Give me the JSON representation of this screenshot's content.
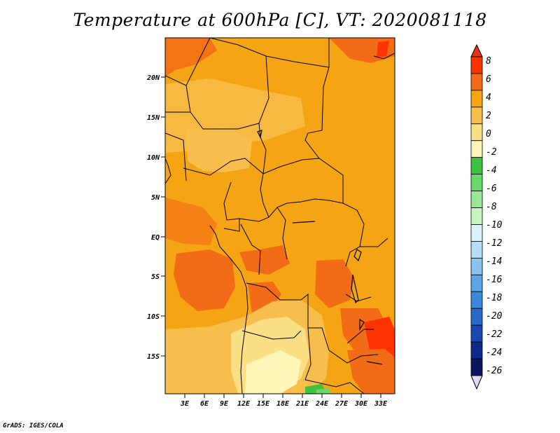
{
  "title": "Temperature at 600hPa [C], VT: 2020081118",
  "credit": "GrADS: IGES/COLA",
  "map": {
    "lat_ticks": [
      "20N",
      "15N",
      "10N",
      "5N",
      "EQ",
      "5S",
      "10S",
      "15S"
    ],
    "lon_ticks": [
      "3E",
      "6E",
      "9E",
      "12E",
      "15E",
      "18E",
      "21E",
      "24E",
      "27E",
      "30E",
      "33E"
    ],
    "background_color": "#f5a414"
  },
  "colorbar": {
    "labels": [
      "8",
      "6",
      "4",
      "2",
      "0",
      "-2",
      "-4",
      "-6",
      "-8",
      "-10",
      "-12",
      "-14",
      "-16",
      "-18",
      "-20",
      "-22",
      "-24",
      "-26"
    ],
    "colors": [
      "#ff3300",
      "#f26b16",
      "#f5a414",
      "#f8be4c",
      "#fbdf84",
      "#fdf6b8",
      "#3ec23e",
      "#69d86a",
      "#98e894",
      "#c7f5c0",
      "#d9f2fb",
      "#b4def6",
      "#88c4f0",
      "#5ba6e6",
      "#3b87dc",
      "#2a68cc",
      "#1847b4",
      "#0c2a8c",
      "#0a1660"
    ],
    "top_triangle_color": "#e83216",
    "bottom_triangle_color": "#dcdcf8"
  }
}
